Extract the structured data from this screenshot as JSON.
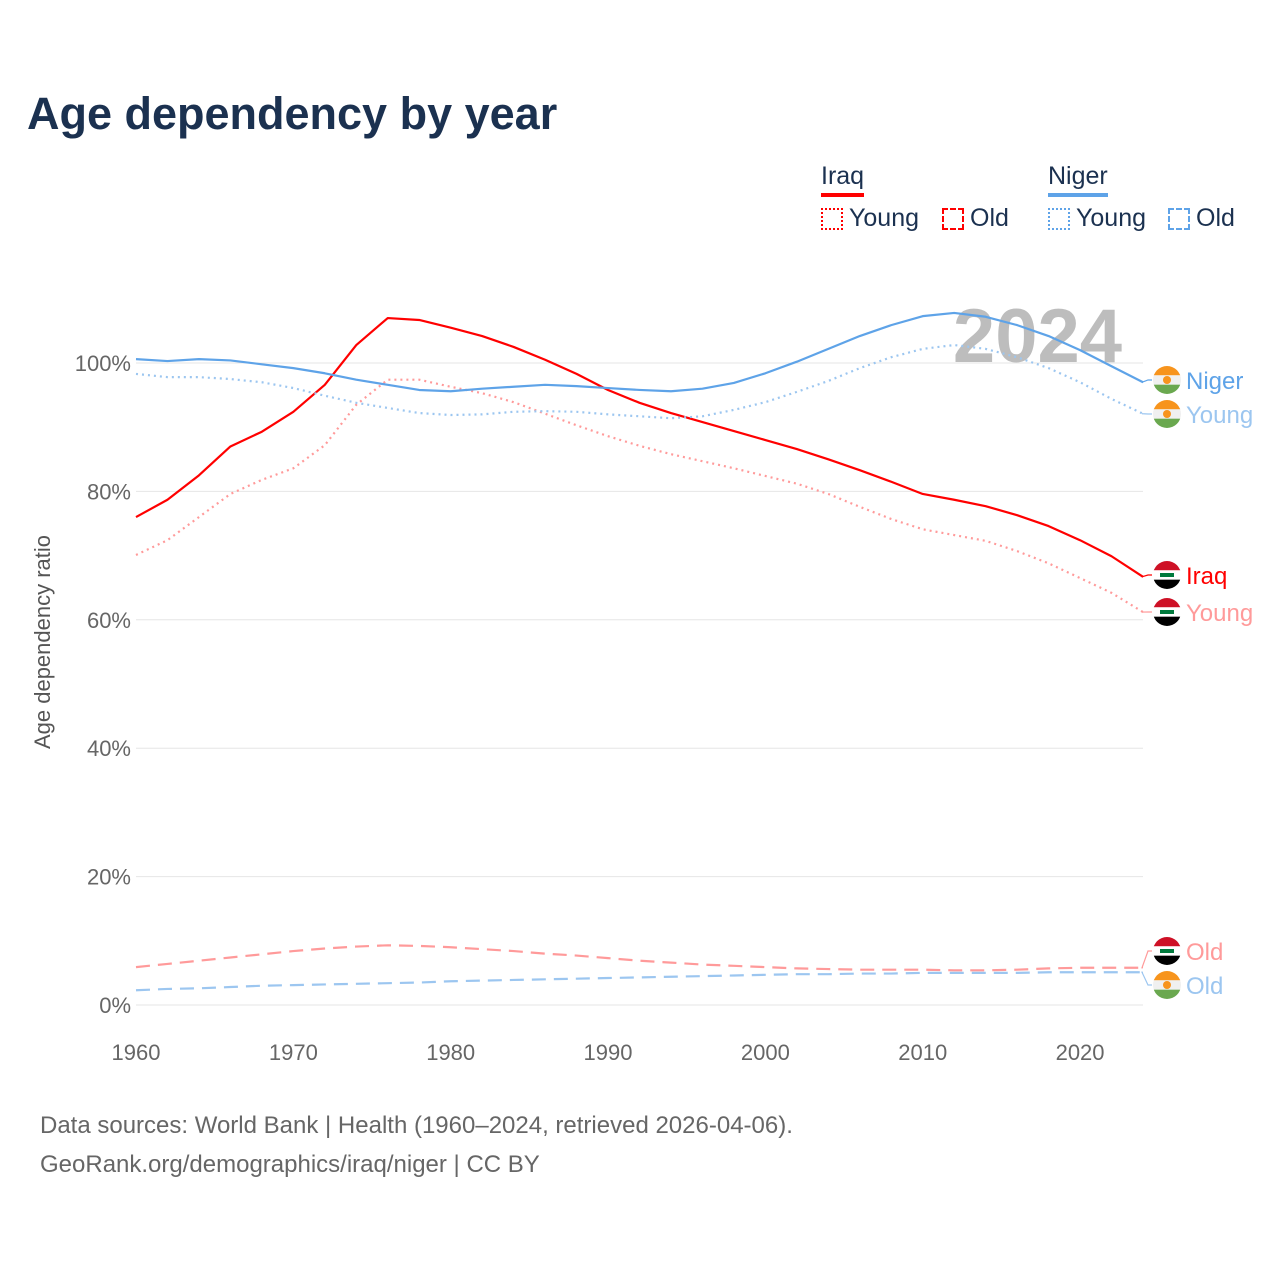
{
  "title": "Age dependency by year",
  "legend": {
    "groups": [
      {
        "name": "Iraq",
        "color": "#ff0000",
        "items": [
          "Young",
          "Old"
        ]
      },
      {
        "name": "Niger",
        "color": "#5ea3e8",
        "items": [
          "Young",
          "Old"
        ]
      }
    ]
  },
  "source": {
    "line1": "Data sources: World Bank | Health (1960–2024, retrieved 2026-04-06).",
    "line2": "GeoRank.org/demographics/iraq/niger | CC BY"
  },
  "chart_data": {
    "type": "line",
    "title": "Age dependency by year",
    "xlabel": "",
    "ylabel": "Age dependency ratio",
    "watermark_year": "2024",
    "xlim": [
      1960,
      2024
    ],
    "ylim": [
      0,
      110
    ],
    "xticks": [
      "1960",
      "1970",
      "1980",
      "1990",
      "2000",
      "2010",
      "2020"
    ],
    "yticks": [
      "0%",
      "20%",
      "40%",
      "60%",
      "80%",
      "100%"
    ],
    "grid": true,
    "x": [
      1960,
      1962,
      1964,
      1966,
      1968,
      1970,
      1972,
      1974,
      1976,
      1978,
      1980,
      1982,
      1984,
      1986,
      1988,
      1990,
      1992,
      1994,
      1996,
      1998,
      2000,
      2002,
      2004,
      2006,
      2008,
      2010,
      2012,
      2014,
      2016,
      2018,
      2020,
      2022,
      2024
    ],
    "series": [
      {
        "name": "Iraq",
        "end_label": "Iraq",
        "country": "iraq",
        "color": "#ff0000",
        "style": "solid",
        "values": [
          76.0,
          78.7,
          82.5,
          87,
          89.3,
          92.4,
          96.6,
          102.8,
          107,
          106.7,
          105.5,
          104.2,
          102.5,
          100.5,
          98.3,
          95.8,
          93.8,
          92.2,
          90.8,
          89.4,
          88,
          86.6,
          85,
          83.3,
          81.5,
          79.6,
          78.7,
          77.7,
          76.3,
          74.6,
          72.4,
          69.9,
          66.7
        ]
      },
      {
        "name": "Iraq Young",
        "end_label": "Young",
        "country": "iraq",
        "color": "#ff9a9a",
        "style": "dotted",
        "values": [
          70.1,
          72.4,
          76,
          79.6,
          81.8,
          83.6,
          87.2,
          93.5,
          97.4,
          97.4,
          96.3,
          95.3,
          93.9,
          92.1,
          90.3,
          88.6,
          87.1,
          85.8,
          84.7,
          83.6,
          82.4,
          81.2,
          79.6,
          77.6,
          75.7,
          74.1,
          73.2,
          72.3,
          70.7,
          68.8,
          66.5,
          64.2,
          61.2
        ]
      },
      {
        "name": "Iraq Old",
        "end_label": "Old",
        "country": "iraq",
        "color": "#ff9a9a",
        "style": "dashed",
        "values": [
          5.9,
          6.4,
          6.9,
          7.4,
          7.9,
          8.4,
          8.8,
          9.1,
          9.3,
          9.2,
          9.0,
          8.7,
          8.4,
          8.0,
          7.7,
          7.3,
          6.9,
          6.6,
          6.3,
          6.1,
          5.9,
          5.7,
          5.6,
          5.5,
          5.5,
          5.5,
          5.4,
          5.4,
          5.5,
          5.7,
          5.8,
          5.8,
          5.8
        ]
      },
      {
        "name": "Niger",
        "end_label": "Niger",
        "country": "niger",
        "color": "#5ea3e8",
        "style": "solid",
        "values": [
          100.6,
          100.3,
          100.6,
          100.4,
          99.8,
          99.2,
          98.4,
          97.4,
          96.6,
          95.8,
          95.6,
          96,
          96.3,
          96.6,
          96.4,
          96.1,
          95.8,
          95.6,
          96,
          96.9,
          98.4,
          100.2,
          102.2,
          104.2,
          105.9,
          107.3,
          107.8,
          107.2,
          105.9,
          104.2,
          102,
          99.5,
          97
        ]
      },
      {
        "name": "Niger Young",
        "end_label": "Young",
        "country": "niger",
        "color": "#9cc6f0",
        "style": "dotted",
        "values": [
          98.3,
          97.8,
          97.8,
          97.5,
          97,
          96.1,
          94.9,
          93.8,
          93,
          92.2,
          91.9,
          92,
          92.4,
          92.5,
          92.4,
          92,
          91.7,
          91.4,
          91.7,
          92.7,
          93.9,
          95.5,
          97.2,
          99.2,
          100.9,
          102.2,
          102.8,
          102.2,
          100.9,
          99.2,
          97,
          94.4,
          92.1
        ]
      },
      {
        "name": "Niger Old",
        "end_label": "Old",
        "country": "niger",
        "color": "#9cc6f0",
        "style": "dashed",
        "values": [
          2.3,
          2.5,
          2.6,
          2.8,
          3.0,
          3.1,
          3.2,
          3.3,
          3.4,
          3.5,
          3.7,
          3.8,
          3.9,
          4.0,
          4.1,
          4.2,
          4.3,
          4.4,
          4.5,
          4.6,
          4.7,
          4.8,
          4.8,
          4.9,
          4.9,
          5.0,
          5.0,
          5.0,
          5.0,
          5.1,
          5.1,
          5.1,
          5.1
        ]
      }
    ]
  }
}
